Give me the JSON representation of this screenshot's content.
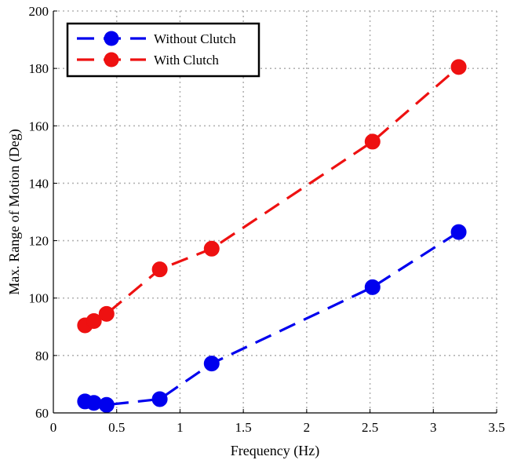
{
  "chart_data": {
    "type": "line",
    "xlabel": "Frequency (Hz)",
    "ylabel": "Max. Range of Motion (Deg)",
    "xlim": [
      0,
      3.5
    ],
    "ylim": [
      60,
      200
    ],
    "xticks": [
      0,
      0.5,
      1,
      1.5,
      2,
      2.5,
      3,
      3.5
    ],
    "xtick_labels": [
      "0",
      "0.5",
      "1",
      "1.5",
      "2",
      "2.5",
      "3",
      "3.5"
    ],
    "yticks": [
      60,
      80,
      100,
      120,
      140,
      160,
      180,
      200
    ],
    "ytick_labels": [
      "60",
      "80",
      "100",
      "120",
      "140",
      "160",
      "180",
      "200"
    ],
    "grid": true,
    "legend_position": "top-left",
    "series": [
      {
        "name": "Without Clutch",
        "color": "#0000ee",
        "line_style": "dashed",
        "marker": "circle",
        "x": [
          0.25,
          0.32,
          0.42,
          0.84,
          1.25,
          2.52,
          3.2
        ],
        "y": [
          64,
          63.5,
          62.8,
          64.8,
          77.2,
          103.8,
          123
        ]
      },
      {
        "name": "With Clutch",
        "color": "#ee1111",
        "line_style": "dashed",
        "marker": "circle",
        "x": [
          0.25,
          0.32,
          0.42,
          0.84,
          1.25,
          2.52,
          3.2
        ],
        "y": [
          90.5,
          92,
          94.5,
          110,
          117.2,
          154.5,
          180.5
        ]
      }
    ]
  }
}
